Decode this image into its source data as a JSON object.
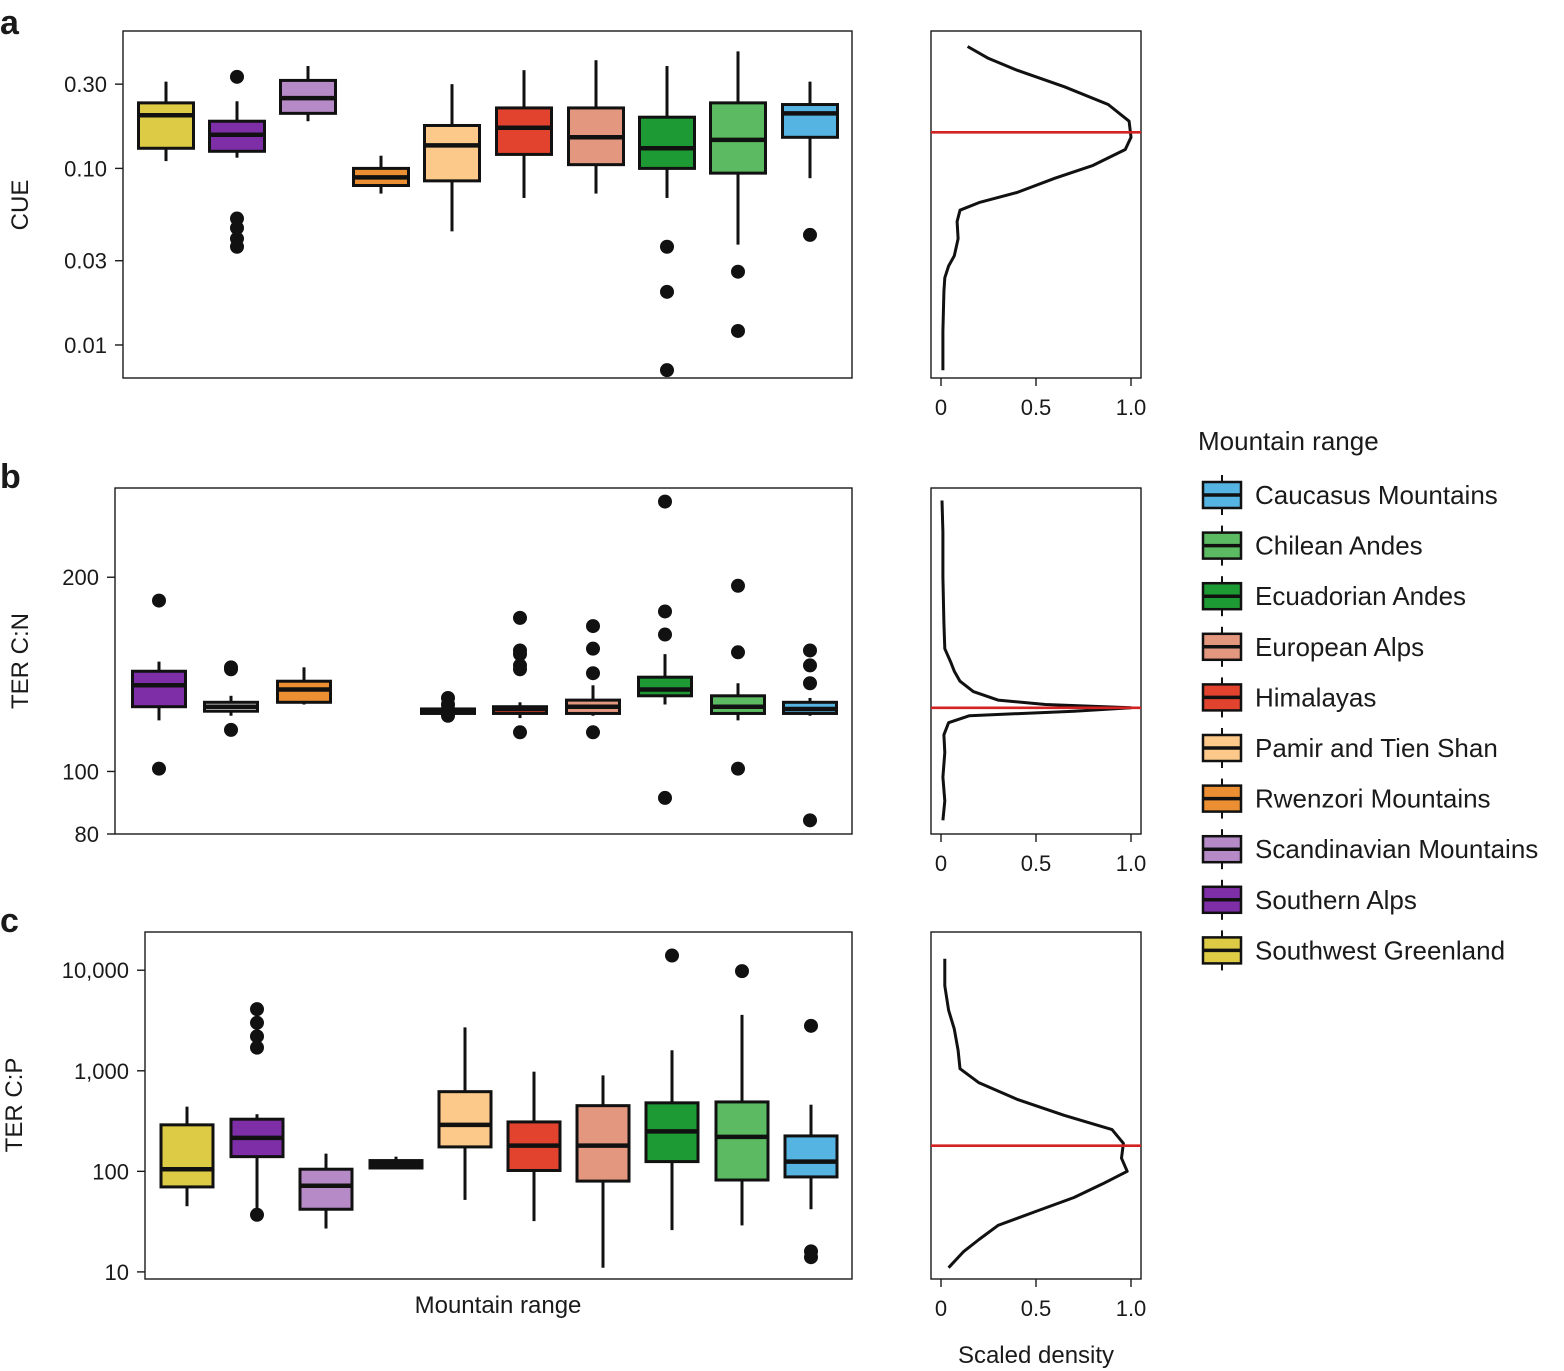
{
  "legend": {
    "title": "Mountain range",
    "entries": [
      {
        "label": "Caucasus Mountains",
        "color": "#56b4e2"
      },
      {
        "label": "Chilean Andes",
        "color": "#5cbb62"
      },
      {
        "label": "Ecuadorian Andes",
        "color": "#1e9a34"
      },
      {
        "label": "European Alps",
        "color": "#e4977f"
      },
      {
        "label": "Himalayas",
        "color": "#e1432e"
      },
      {
        "label": "Pamir and Tien Shan",
        "color": "#fdc98a"
      },
      {
        "label": "Rwenzori Mountains",
        "color": "#ec8f32"
      },
      {
        "label": "Scandinavian Mountains",
        "color": "#b58ac6"
      },
      {
        "label": "Southern Alps",
        "color": "#7e2ea6"
      },
      {
        "label": "Southwest Greenland",
        "color": "#ddcb45"
      }
    ]
  },
  "shared_xlabel": "Mountain range",
  "density_xlabel": "Scaled density",
  "chart_data": [
    {
      "panel": "a",
      "type": "boxplot",
      "ylabel": "CUE",
      "yscale": "log",
      "ylim": [
        0.0065,
        0.6
      ],
      "yticks": [
        0.01,
        0.03,
        0.1,
        0.3
      ],
      "ytick_labels": [
        "0.01",
        "0.03",
        "0.10",
        "0.30"
      ],
      "boxes": [
        {
          "group": "Southwest Greenland",
          "color": "#ddcb45",
          "min": 0.11,
          "q1": 0.13,
          "median": 0.2,
          "q3": 0.235,
          "max": 0.31,
          "outliers": []
        },
        {
          "group": "Southern Alps",
          "color": "#7e2ea6",
          "min": 0.115,
          "q1": 0.125,
          "median": 0.155,
          "q3": 0.185,
          "max": 0.24,
          "outliers": [
            0.33,
            0.052,
            0.046,
            0.04,
            0.036
          ]
        },
        {
          "group": "Scandinavian Mountains",
          "color": "#b58ac6",
          "min": 0.185,
          "q1": 0.205,
          "median": 0.25,
          "q3": 0.315,
          "max": 0.38,
          "outliers": []
        },
        {
          "group": "Rwenzori Mountains",
          "color": "#ec8f32",
          "min": 0.072,
          "q1": 0.08,
          "median": 0.089,
          "q3": 0.1,
          "max": 0.118,
          "outliers": []
        },
        {
          "group": "Pamir and Tien Shan",
          "color": "#fdc98a",
          "min": 0.044,
          "q1": 0.085,
          "median": 0.135,
          "q3": 0.175,
          "max": 0.3,
          "outliers": []
        },
        {
          "group": "Himalayas",
          "color": "#e1432e",
          "min": 0.068,
          "q1": 0.12,
          "median": 0.17,
          "q3": 0.22,
          "max": 0.36,
          "outliers": []
        },
        {
          "group": "European Alps",
          "color": "#e4977f",
          "min": 0.072,
          "q1": 0.105,
          "median": 0.15,
          "q3": 0.22,
          "max": 0.41,
          "outliers": []
        },
        {
          "group": "Ecuadorian Andes",
          "color": "#1e9a34",
          "min": 0.068,
          "q1": 0.1,
          "median": 0.13,
          "q3": 0.195,
          "max": 0.38,
          "outliers": [
            0.036,
            0.02,
            0.0072
          ]
        },
        {
          "group": "Chilean Andes",
          "color": "#5cbb62",
          "min": 0.037,
          "q1": 0.094,
          "median": 0.145,
          "q3": 0.235,
          "max": 0.46,
          "outliers": [
            0.026,
            0.012
          ]
        },
        {
          "group": "Caucasus Mountains",
          "color": "#56b4e2",
          "min": 0.088,
          "q1": 0.15,
          "median": 0.205,
          "q3": 0.23,
          "max": 0.31,
          "outliers": [
            0.042
          ]
        }
      ],
      "density": {
        "xlim": [
          0,
          1
        ],
        "xticks": [
          0,
          0.5,
          1
        ],
        "xtick_labels": [
          "0",
          "0.5",
          "1.0"
        ],
        "reference_line": 0.16,
        "reference_color": "#d42222",
        "curve": [
          [
            0.01,
            0.0072
          ],
          [
            0.01,
            0.012
          ],
          [
            0.015,
            0.02
          ],
          [
            0.02,
            0.024
          ],
          [
            0.04,
            0.028
          ],
          [
            0.07,
            0.032
          ],
          [
            0.09,
            0.04
          ],
          [
            0.085,
            0.05
          ],
          [
            0.1,
            0.058
          ],
          [
            0.2,
            0.064
          ],
          [
            0.4,
            0.073
          ],
          [
            0.6,
            0.088
          ],
          [
            0.8,
            0.104
          ],
          [
            0.97,
            0.128
          ],
          [
            1.0,
            0.15
          ],
          [
            0.99,
            0.185
          ],
          [
            0.88,
            0.23
          ],
          [
            0.65,
            0.29
          ],
          [
            0.4,
            0.36
          ],
          [
            0.25,
            0.42
          ],
          [
            0.14,
            0.49
          ]
        ]
      }
    },
    {
      "panel": "b",
      "type": "boxplot",
      "ylabel": "TER C:N",
      "yscale": "log",
      "ylim": [
        80,
        275
      ],
      "yticks": [
        80,
        100,
        200
      ],
      "ytick_labels": [
        "80",
        "100",
        "200"
      ],
      "boxes": [
        {
          "group": "Southern Alps",
          "color": "#7e2ea6",
          "min": 120,
          "q1": 126,
          "median": 136,
          "q3": 143,
          "max": 148,
          "outliers": [
            184,
            101
          ]
        },
        {
          "group": "Rwenzori Mountains",
          "color": "#eaeaea",
          "min": 122,
          "q1": 124,
          "median": 126,
          "q3": 128,
          "max": 131,
          "outliers": [
            144,
            145,
            116
          ]
        },
        {
          "group": "Rwenzori Mountains",
          "color": "#ec8f32",
          "min": 127,
          "q1": 128,
          "median": 134,
          "q3": 138,
          "max": 145,
          "outliers": []
        },
        {
          "group": "Pamir and Tien Shan",
          "color": "#fdc98a",
          "min": 122,
          "q1": 123,
          "median": 124,
          "q3": 125,
          "max": 126,
          "outliers": [
            125,
            123,
            122,
            127,
            130
          ]
        },
        {
          "group": "Himalayas",
          "color": "#e1432e",
          "min": 121,
          "q1": 123,
          "median": 125,
          "q3": 126,
          "max": 128,
          "outliers": [
            173,
            154,
            152,
            146,
            144,
            115
          ]
        },
        {
          "group": "European Alps",
          "color": "#e4977f",
          "min": 122,
          "q1": 123,
          "median": 126,
          "q3": 129,
          "max": 136,
          "outliers": [
            168,
            155,
            142,
            115
          ]
        },
        {
          "group": "Ecuadorian Andes",
          "color": "#1e9a34",
          "min": 127,
          "q1": 131,
          "median": 134,
          "q3": 140,
          "max": 152,
          "outliers": [
            262,
            177,
            163,
            91
          ]
        },
        {
          "group": "Chilean Andes",
          "color": "#5cbb62",
          "min": 120,
          "q1": 123,
          "median": 126,
          "q3": 131,
          "max": 137,
          "outliers": [
            194,
            153,
            101
          ]
        },
        {
          "group": "Caucasus Mountains",
          "color": "#56b4e2",
          "min": 122,
          "q1": 123,
          "median": 125,
          "q3": 128,
          "max": 130,
          "outliers": [
            154,
            146,
            137,
            84
          ]
        }
      ],
      "density": {
        "xlim": [
          0,
          1
        ],
        "xticks": [
          0,
          0.5,
          1
        ],
        "xtick_labels": [
          "0",
          "0.5",
          "1.0"
        ],
        "reference_line": 125.5,
        "reference_color": "#d42222",
        "curve": [
          [
            0.01,
            84
          ],
          [
            0.02,
            90
          ],
          [
            0.01,
            98
          ],
          [
            0.02,
            107
          ],
          [
            0.015,
            114
          ],
          [
            0.04,
            119
          ],
          [
            0.15,
            122
          ],
          [
            0.7,
            124
          ],
          [
            1.0,
            125.5
          ],
          [
            0.55,
            127
          ],
          [
            0.3,
            129
          ],
          [
            0.17,
            133
          ],
          [
            0.1,
            138
          ],
          [
            0.07,
            143
          ],
          [
            0.05,
            148
          ],
          [
            0.02,
            155
          ],
          [
            0.015,
            170
          ],
          [
            0.01,
            200
          ],
          [
            0.01,
            235
          ],
          [
            0.005,
            263
          ]
        ]
      }
    },
    {
      "panel": "c",
      "type": "boxplot",
      "ylabel": "TER C:P",
      "yscale": "log",
      "ylim": [
        8.5,
        24000
      ],
      "yticks": [
        10,
        100,
        1000,
        10000
      ],
      "ytick_labels": [
        "10",
        "100",
        "1,000",
        "10,000"
      ],
      "boxes": [
        {
          "group": "Southwest Greenland",
          "color": "#ddcb45",
          "min": 45,
          "q1": 70,
          "median": 105,
          "q3": 290,
          "max": 440,
          "outliers": []
        },
        {
          "group": "Southern Alps",
          "color": "#7e2ea6",
          "min": 38,
          "q1": 140,
          "median": 215,
          "q3": 330,
          "max": 370,
          "outliers": [
            4100,
            3000,
            2200,
            1700,
            37
          ]
        },
        {
          "group": "Scandinavian Mountains",
          "color": "#b58ac6",
          "min": 27,
          "q1": 42,
          "median": 72,
          "q3": 105,
          "max": 150,
          "outliers": []
        },
        {
          "group": "Rwenzori Mountains",
          "color": "#1a1a1a",
          "min": 105,
          "q1": 108,
          "median": 118,
          "q3": 128,
          "max": 140,
          "outliers": []
        },
        {
          "group": "Pamir and Tien Shan",
          "color": "#fdc98a",
          "min": 52,
          "q1": 175,
          "median": 290,
          "q3": 620,
          "max": 2700,
          "outliers": []
        },
        {
          "group": "Himalayas",
          "color": "#e1432e",
          "min": 32,
          "q1": 102,
          "median": 180,
          "q3": 310,
          "max": 980,
          "outliers": []
        },
        {
          "group": "European Alps",
          "color": "#e4977f",
          "min": 11,
          "q1": 80,
          "median": 180,
          "q3": 450,
          "max": 900,
          "outliers": []
        },
        {
          "group": "Ecuadorian Andes",
          "color": "#1e9a34",
          "min": 26,
          "q1": 125,
          "median": 250,
          "q3": 480,
          "max": 1600,
          "outliers": [
            14000
          ]
        },
        {
          "group": "Chilean Andes",
          "color": "#5cbb62",
          "min": 29,
          "q1": 82,
          "median": 220,
          "q3": 490,
          "max": 3600,
          "outliers": [
            9800
          ]
        },
        {
          "group": "Caucasus Mountains",
          "color": "#56b4e2",
          "min": 42,
          "q1": 88,
          "median": 125,
          "q3": 225,
          "max": 460,
          "outliers": [
            2800,
            16,
            14
          ]
        }
      ],
      "density": {
        "xlim": [
          0,
          1
        ],
        "xticks": [
          0,
          0.5,
          1
        ],
        "xtick_labels": [
          "0",
          "0.5",
          "1.0"
        ],
        "reference_line": 180,
        "reference_color": "#d42222",
        "curve": [
          [
            0.04,
            11
          ],
          [
            0.12,
            16
          ],
          [
            0.2,
            21
          ],
          [
            0.3,
            29
          ],
          [
            0.5,
            40
          ],
          [
            0.7,
            55
          ],
          [
            0.85,
            75
          ],
          [
            0.98,
            100
          ],
          [
            0.95,
            135
          ],
          [
            0.96,
            190
          ],
          [
            0.9,
            260
          ],
          [
            0.65,
            360
          ],
          [
            0.4,
            520
          ],
          [
            0.2,
            760
          ],
          [
            0.1,
            1050
          ],
          [
            0.09,
            1600
          ],
          [
            0.07,
            2600
          ],
          [
            0.04,
            4000
          ],
          [
            0.02,
            7000
          ],
          [
            0.02,
            13000
          ]
        ]
      }
    }
  ]
}
